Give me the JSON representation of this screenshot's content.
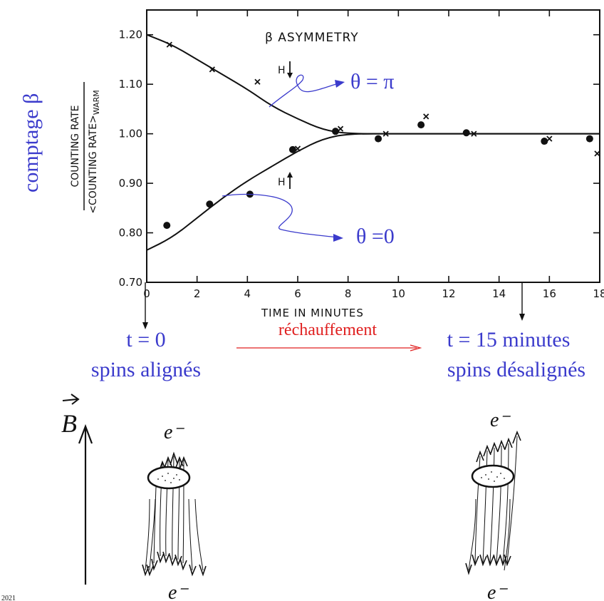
{
  "chart_data": {
    "type": "scatter",
    "title": "β  ASYMMETRY",
    "xlabel": "TIME IN MINUTES",
    "ylabel_numerator": "COUNTING RATE",
    "ylabel_denominator": "<COUNTING RATE>",
    "ylabel_subscript": "WARM",
    "xlim": [
      0,
      18
    ],
    "ylim": [
      0.7,
      1.25
    ],
    "x_ticks": [
      "0",
      "2",
      "4",
      "6",
      "8",
      "10",
      "12",
      "14",
      "16",
      "18"
    ],
    "y_ticks": [
      "0.70",
      "0.80",
      "0.90",
      "1.00",
      "1.10",
      "1.20"
    ],
    "x_tick_values": [
      0,
      2,
      4,
      6,
      8,
      10,
      12,
      14,
      16,
      18
    ],
    "y_tick_values": [
      0.7,
      0.8,
      0.9,
      1.0,
      1.1,
      1.2
    ],
    "series": [
      {
        "marker": "x",
        "points": [
          [
            0.9,
            1.18
          ],
          [
            2.6,
            1.13
          ],
          [
            4.4,
            1.105
          ],
          [
            6.0,
            0.97
          ],
          [
            7.7,
            1.01
          ],
          [
            9.5,
            1.0
          ],
          [
            11.1,
            1.035
          ],
          [
            13.0,
            1.0
          ],
          [
            16.0,
            0.99
          ],
          [
            17.9,
            0.96
          ]
        ]
      },
      {
        "marker": "dot",
        "points": [
          [
            0.8,
            0.815
          ],
          [
            2.5,
            0.858
          ],
          [
            4.1,
            0.878
          ],
          [
            5.8,
            0.968
          ],
          [
            7.5,
            1.005
          ],
          [
            9.2,
            0.99
          ],
          [
            10.9,
            1.018
          ],
          [
            12.7,
            1.002
          ],
          [
            15.8,
            0.985
          ],
          [
            17.6,
            0.99
          ]
        ]
      }
    ],
    "curves": [
      {
        "name": "upper",
        "points": [
          [
            0,
            1.2
          ],
          [
            1,
            1.18
          ],
          [
            2,
            1.15
          ],
          [
            3,
            1.12
          ],
          [
            4,
            1.09
          ],
          [
            5,
            1.055
          ],
          [
            6,
            1.03
          ],
          [
            7,
            1.008
          ],
          [
            8,
            1.0
          ],
          [
            10,
            1.0
          ],
          [
            18,
            1.0
          ]
        ]
      },
      {
        "name": "lower",
        "points": [
          [
            0,
            0.765
          ],
          [
            1,
            0.79
          ],
          [
            2,
            0.83
          ],
          [
            3,
            0.87
          ],
          [
            4,
            0.905
          ],
          [
            5,
            0.935
          ],
          [
            6,
            0.965
          ],
          [
            7,
            0.99
          ],
          [
            8,
            1.0
          ],
          [
            10,
            1.0
          ],
          [
            18,
            1.0
          ]
        ]
      }
    ],
    "annotations": {
      "h_down": "H",
      "h_up": "H",
      "theta_pi": "θ = π",
      "theta_zero": "θ =0"
    }
  },
  "labels": {
    "y_side": "comptage β",
    "t0": "t = 0",
    "aligned": "spins alignés",
    "warming": "réchauffement",
    "t15": "t = 15 minutes",
    "misaligned": "spins désalignés",
    "b_field": "B",
    "e_top_left": "e⁻",
    "e_bottom_left": "e⁻",
    "e_top_right": "e⁻",
    "e_bottom_right": "e⁻",
    "footer_year": "2021"
  },
  "colors": {
    "annotation_blue": "#3b3bcc",
    "warming_red": "#e02020",
    "ink": "#111111"
  }
}
